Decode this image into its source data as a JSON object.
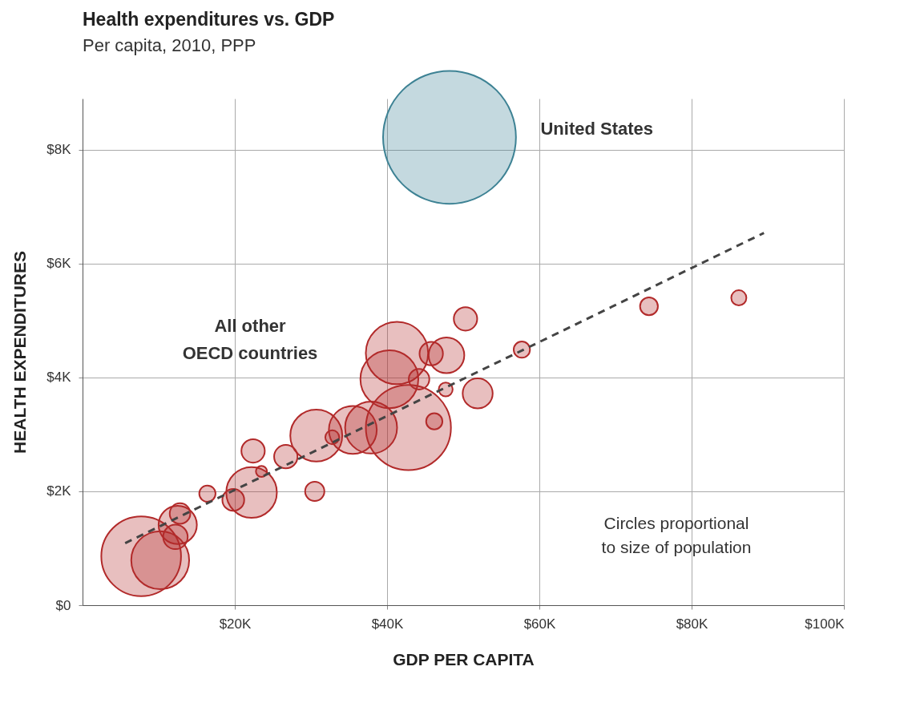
{
  "chart_data": {
    "type": "bubble",
    "title": "Health expenditures vs. GDP",
    "subtitle": "Per capita, 2010, PPP",
    "xlabel": "GDP PER CAPITA",
    "ylabel": "HEALTH EXPENDITURES",
    "xlim": [
      0,
      100000
    ],
    "ylim": [
      0,
      8900
    ],
    "xticks": [
      {
        "value": 20000,
        "label": "$20K"
      },
      {
        "value": 40000,
        "label": "$40K"
      },
      {
        "value": 60000,
        "label": "$60K"
      },
      {
        "value": 80000,
        "label": "$80K"
      },
      {
        "value": 100000,
        "label": "$100K"
      }
    ],
    "yticks": [
      {
        "value": 0,
        "label": "$0"
      },
      {
        "value": 2000,
        "label": "$2K"
      },
      {
        "value": 4000,
        "label": "$4K"
      },
      {
        "value": 6000,
        "label": "$6K"
      },
      {
        "value": 8000,
        "label": "$8K"
      }
    ],
    "grid": true,
    "annotations": [
      "Circles proportional to size of population"
    ],
    "series": [
      {
        "name": "United States",
        "color": "#3d8294",
        "x": [
          48200
        ],
        "values": [
          8220
        ],
        "sizes": [
          1
        ]
      },
      {
        "name": "All other OECD countries",
        "color": "#b22a2a",
        "x": [
          7700,
          10200,
          12500,
          12800,
          12200,
          16400,
          19800,
          22200,
          22400,
          23500,
          26700,
          30500,
          30700,
          32800,
          35500,
          37900,
          42800,
          41300,
          40300,
          44200,
          45800,
          47800,
          50300,
          46200,
          47700,
          51900,
          57700,
          74400,
          86200
        ],
        "values": [
          860,
          790,
          1410,
          1610,
          1200,
          1960,
          1850,
          1980,
          2710,
          2350,
          2610,
          2000,
          2980,
          2950,
          3080,
          3120,
          3120,
          4430,
          3970,
          3970,
          4420,
          4390,
          5030,
          3230,
          3790,
          3720,
          4490,
          5250,
          5400
        ],
        "sizes": [
          0.36,
          0.19,
          0.083,
          0.024,
          0.034,
          0.015,
          0.027,
          0.145,
          0.031,
          0.007,
          0.031,
          0.021,
          0.153,
          0.011,
          0.13,
          0.153,
          0.41,
          0.22,
          0.19,
          0.024,
          0.031,
          0.072,
          0.031,
          0.015,
          0.011,
          0.051,
          0.015,
          0.018,
          0.013
        ]
      },
      {
        "type": "line",
        "color": "#444444",
        "line_style": "dashed",
        "x": [
          5600,
          89500
        ],
        "values": [
          1090,
          6540
        ]
      }
    ]
  }
}
